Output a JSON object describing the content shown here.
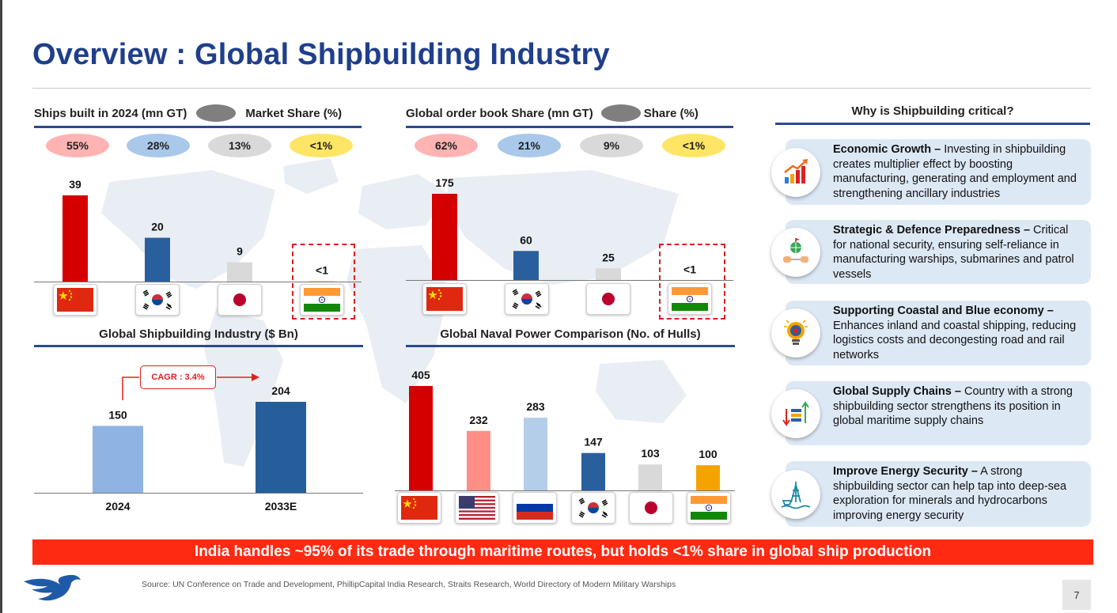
{
  "slide": {
    "title": "Overview : Global Shipbuilding Industry",
    "banner": "India handles ~95% of its trade through maritime routes, but holds <1% share in global ship production",
    "source": "Source: UN Conference on Trade and Development, PhillipCapital India Research, Straits Research, World Directory of Modern Military Warships",
    "page_number": "7"
  },
  "colors": {
    "title_blue": "#1f3f8c",
    "china_red": "#d40000",
    "korea_blue": "#2a5f9e",
    "japan_grey": "#d9d9d9",
    "india_orange": "#f5a300",
    "usa_salmon": "#ff8f86",
    "russia_lightblue": "#b4cde8",
    "banner_red": "#ff2a12",
    "card_bg": "#dde8f5"
  },
  "chart_data": [
    {
      "id": "ships_built_2024",
      "type": "bar",
      "title": "Ships built in 2024 (mn GT)",
      "legend_label": "Market Share (%)",
      "categories": [
        "China",
        "South Korea",
        "Japan",
        "India"
      ],
      "values": [
        39,
        20,
        9,
        0.5
      ],
      "value_labels": [
        "39",
        "20",
        "9",
        "<1"
      ],
      "share_labels": [
        "55%",
        "28%",
        "13%",
        "<1%"
      ],
      "colors": [
        "#d40000",
        "#2a5f9e",
        "#d9d9d9",
        "#f5a300"
      ],
      "highlight": "India",
      "ylim": [
        0,
        39
      ]
    },
    {
      "id": "order_book_share",
      "type": "bar",
      "title": "Global order book Share (mn GT)",
      "legend_label": "Share (%)",
      "categories": [
        "China",
        "South Korea",
        "Japan",
        "India"
      ],
      "values": [
        175,
        60,
        25,
        0.5
      ],
      "value_labels": [
        "175",
        "60",
        "25",
        "<1"
      ],
      "share_labels": [
        "62%",
        "21%",
        "9%",
        "<1%"
      ],
      "colors": [
        "#d40000",
        "#2a5f9e",
        "#d9d9d9",
        "#f5a300"
      ],
      "highlight": "India",
      "ylim": [
        0,
        175
      ]
    },
    {
      "id": "industry_size",
      "type": "bar",
      "title": "Global Shipbuilding Industry ($ Bn)",
      "categories": [
        "2024",
        "2033E"
      ],
      "values": [
        150,
        204
      ],
      "value_labels": [
        "150",
        "204"
      ],
      "colors": [
        "#8fb4e3",
        "#255e9b"
      ],
      "annotation": "CAGR : 3.4%",
      "ylim": [
        0,
        204
      ]
    },
    {
      "id": "naval_power",
      "type": "bar",
      "title": "Global Naval Power Comparison (No. of Hulls)",
      "categories": [
        "China",
        "USA",
        "Russia",
        "South Korea",
        "Japan",
        "India"
      ],
      "values": [
        405,
        232,
        283,
        147,
        103,
        100
      ],
      "value_labels": [
        "405",
        "232",
        "283",
        "147",
        "103",
        "100"
      ],
      "colors": [
        "#d40000",
        "#ff8f86",
        "#b4cde8",
        "#2a5f9e",
        "#d9d9d9",
        "#f5a300"
      ],
      "ylim": [
        0,
        405
      ]
    }
  ],
  "critical": {
    "heading": "Why is Shipbuilding critical?",
    "items": [
      {
        "icon": "growth-chart-icon",
        "title": "Economic Growth –",
        "body": " Investing in shipbuilding creates multiplier effect by boosting manufacturing, generating and employment and strengthening ancillary industries"
      },
      {
        "icon": "defence-globe-icon",
        "title": "Strategic & Defence Preparedness –",
        "body": " Critical for national security, ensuring self-reliance in manufacturing warships, submarines and patrol vessels"
      },
      {
        "icon": "bulb-gear-icon",
        "title": "Supporting Coastal and Blue economy –",
        "body": " Enhances inland and coastal shipping, reducing logistics costs and decongesting road and rail networks"
      },
      {
        "icon": "supply-chain-icon",
        "title": "Global Supply Chains –",
        "body": " Country with a strong shipbuilding sector strengthens its position in global maritime supply chains"
      },
      {
        "icon": "offshore-rig-icon",
        "title": "Improve Energy Security –",
        "body": " A strong shipbuilding sector can help tap into deep-sea exploration for minerals and hydrocarbons improving energy security"
      }
    ]
  }
}
